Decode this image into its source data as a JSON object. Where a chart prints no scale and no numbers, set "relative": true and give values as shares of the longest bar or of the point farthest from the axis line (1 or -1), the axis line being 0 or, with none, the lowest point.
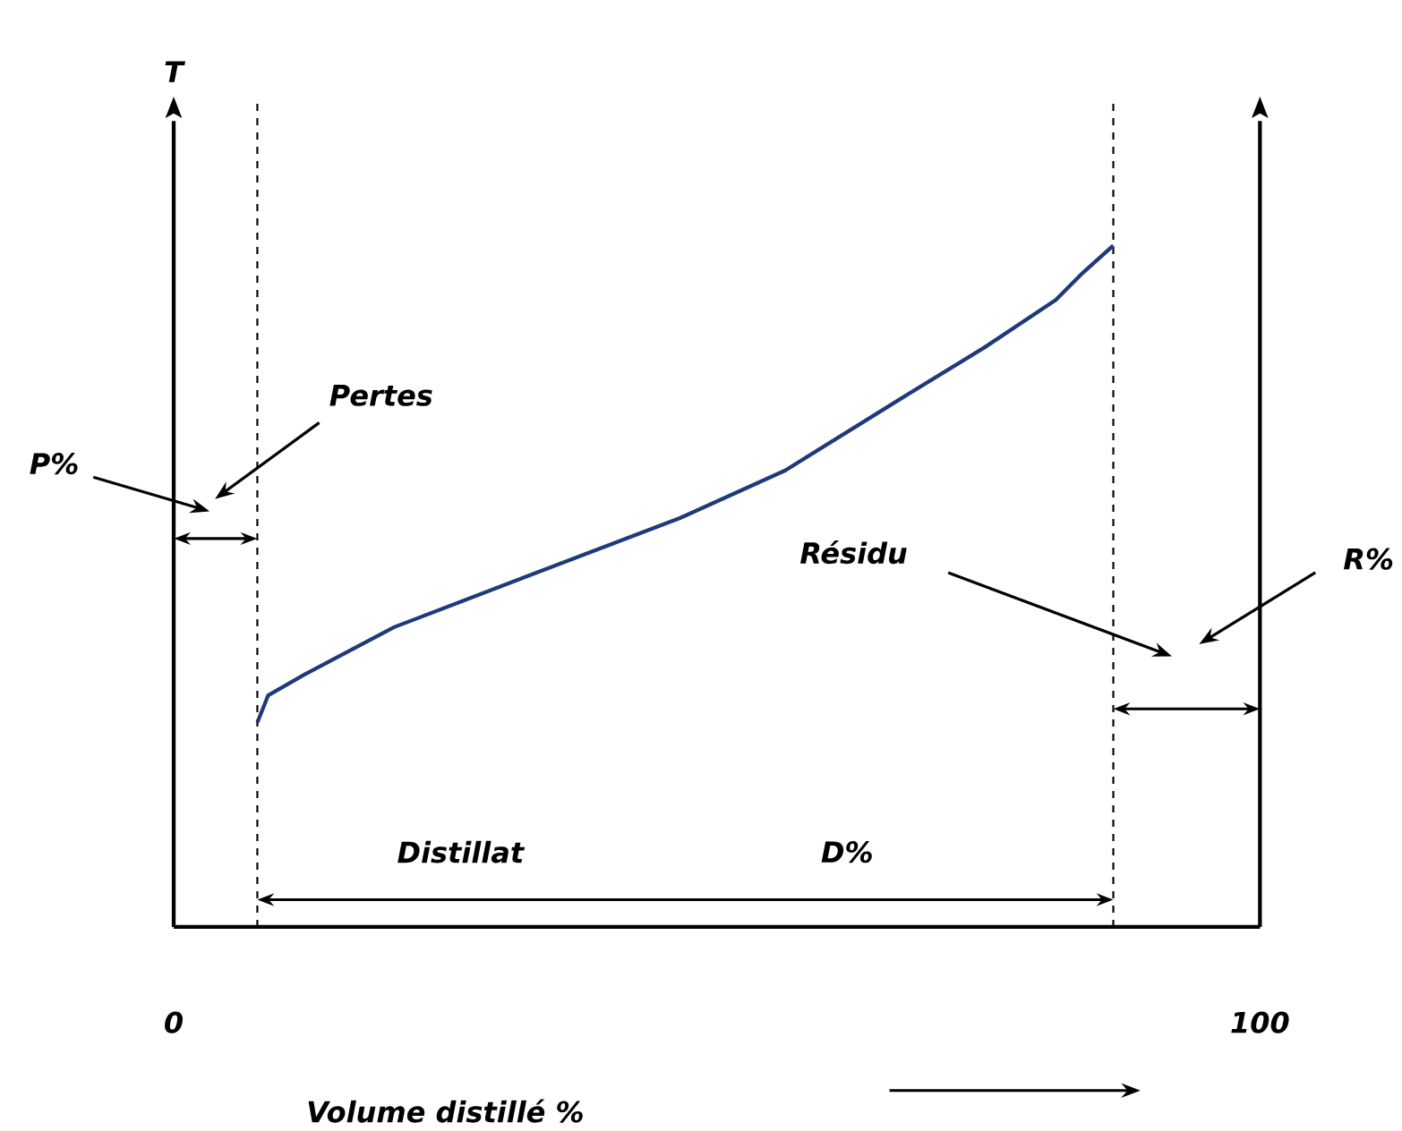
{
  "chart_data": {
    "type": "line",
    "relative": true,
    "xlabel": "Volume distillé %",
    "x": [
      7.7,
      8.7,
      12.0,
      20.3,
      33.4,
      46.6,
      56.3,
      66.4,
      74.6,
      81.2,
      83.7,
      86.5
    ],
    "values": [
      0.3,
      0.34,
      0.37,
      0.44,
      0.52,
      0.6,
      0.67,
      0.77,
      0.85,
      0.92,
      0.96,
      1.0
    ],
    "color": "#1f3a7a",
    "xlim": [
      0,
      100
    ],
    "xticks": [
      0,
      100
    ],
    "marker": "none",
    "line_style": "solid",
    "ref_lines": [
      {
        "axis": "x",
        "value": 7.7,
        "line_style": "dashed",
        "color": "#000000"
      },
      {
        "axis": "x",
        "value": 86.5,
        "line_style": "dashed",
        "color": "#000000"
      }
    ],
    "annotations": [
      "P%",
      "Pertes",
      "Résidu",
      "R%",
      "Distillat",
      "D%",
      "T"
    ]
  }
}
